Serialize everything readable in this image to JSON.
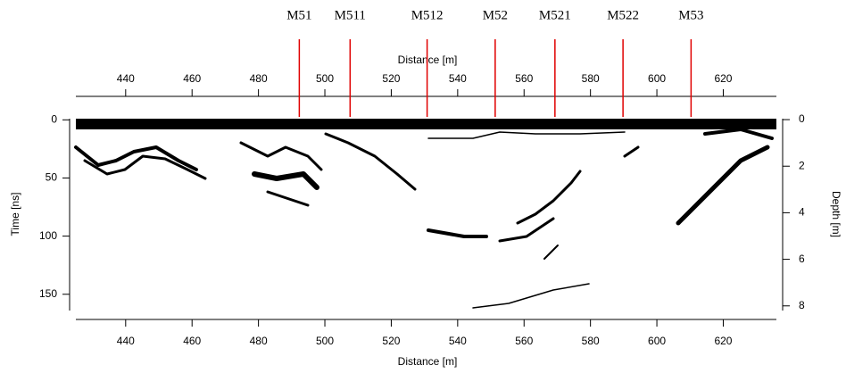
{
  "chart_data": {
    "type": "radargram",
    "xlabel": "Distance [m]",
    "ylabel": "Time [ns]",
    "y2label": "Depth [m]",
    "xlim": [
      425,
      636
    ],
    "xticks": [
      440,
      460,
      480,
      500,
      520,
      540,
      560,
      580,
      600,
      620
    ],
    "ylim": [
      -1,
      164
    ],
    "yticks": [
      0,
      50,
      100,
      150
    ],
    "y_inverted": true,
    "y2lim": [
      -0.04,
      8.2
    ],
    "y2ticks": [
      0,
      2,
      4,
      6,
      8
    ],
    "marker_color": "#e00000",
    "markers": [
      {
        "label": "M51",
        "x": 492.3
      },
      {
        "label": "M511",
        "x": 507.6
      },
      {
        "label": "M512",
        "x": 530.8
      },
      {
        "label": "M52",
        "x": 551.3
      },
      {
        "label": "M521",
        "x": 569.3
      },
      {
        "label": "M522",
        "x": 589.8
      },
      {
        "label": "M53",
        "x": 610.3
      }
    ]
  }
}
